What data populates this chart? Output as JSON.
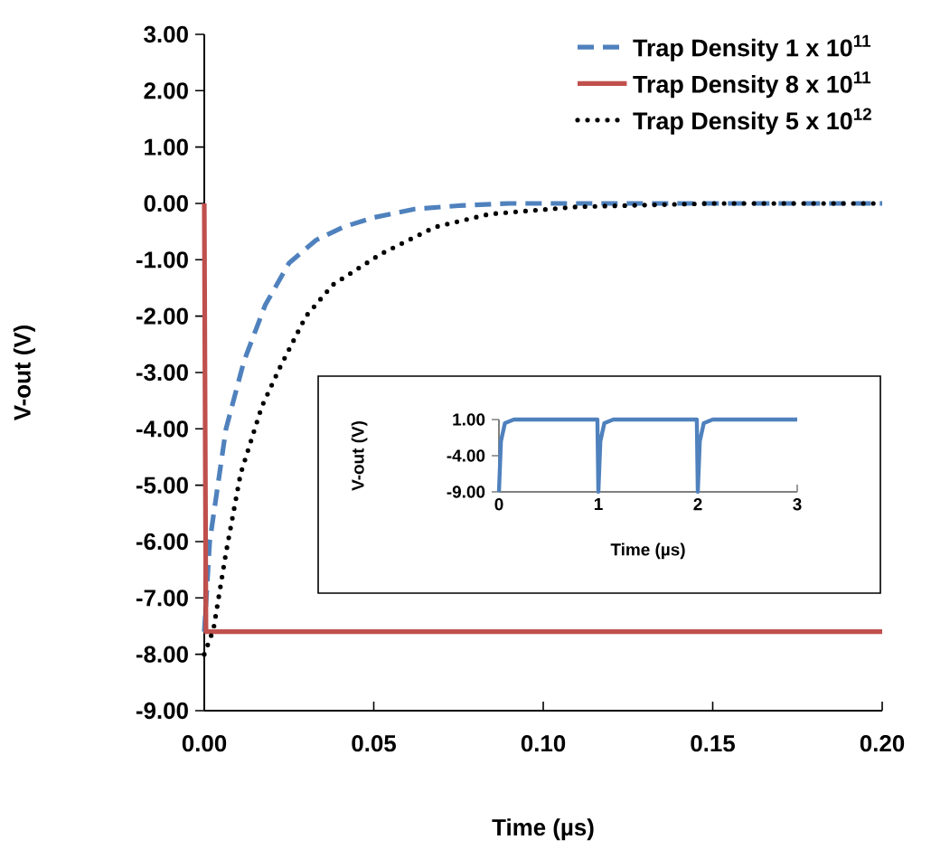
{
  "chart_data": [
    {
      "type": "line",
      "xlabel": "Time (µs)",
      "ylabel": "V-out (V)",
      "xlim": [
        0,
        0.2
      ],
      "ylim": [
        -9,
        3
      ],
      "xticks": [
        {
          "value": 0,
          "label": "0.00"
        },
        {
          "value": 0.05,
          "label": "0.05"
        },
        {
          "value": 0.1,
          "label": "0.10"
        },
        {
          "value": 0.15,
          "label": "0.15"
        },
        {
          "value": 0.2,
          "label": "0.20"
        }
      ],
      "yticks": [
        {
          "value": 3,
          "label": "3.00"
        },
        {
          "value": 2,
          "label": "2.00"
        },
        {
          "value": 1,
          "label": "1.00"
        },
        {
          "value": 0,
          "label": "0.00"
        },
        {
          "value": -1,
          "label": "-1.00"
        },
        {
          "value": -2,
          "label": "-2.00"
        },
        {
          "value": -3,
          "label": "-3.00"
        },
        {
          "value": -4,
          "label": "-4.00"
        },
        {
          "value": -5,
          "label": "-5.00"
        },
        {
          "value": -6,
          "label": "-6.00"
        },
        {
          "value": -7,
          "label": "-7.00"
        },
        {
          "value": -8,
          "label": "-8.00"
        },
        {
          "value": -9,
          "label": "-9.00"
        }
      ],
      "legend": "top right",
      "series": [
        {
          "name": "Trap Density 1 x 10$^{11}$",
          "color": "#4f81bd",
          "line_style": "dashed",
          "x": [
            0,
            0.0016,
            0.0064,
            0.0117,
            0.018,
            0.025,
            0.033,
            0.041,
            0.05,
            0.062,
            0.075,
            0.09,
            0.12,
            0.2
          ],
          "values": [
            -7.6,
            -6.0,
            -4.0,
            -2.8,
            -1.8,
            -1.06,
            -0.65,
            -0.42,
            -0.25,
            -0.1,
            -0.04,
            0,
            0,
            0
          ]
        },
        {
          "name": "Trap Density 8 x 10$^{11}$",
          "color": "#c0504d",
          "line_style": "solid",
          "x": [
            0,
            0.0005,
            0.2
          ],
          "values": [
            0,
            -7.6,
            -7.6
          ]
        },
        {
          "name": "Trap Density 5 x 10$^{12}$",
          "color": "#000000",
          "line_style": "dotted",
          "x": [
            0,
            0.0027,
            0.0064,
            0.0107,
            0.017,
            0.0224,
            0.03,
            0.038,
            0.052,
            0.068,
            0.084,
            0.11,
            0.15,
            0.2
          ],
          "values": [
            -8.0,
            -7.56,
            -6.2,
            -4.8,
            -3.6,
            -2.9,
            -2.0,
            -1.44,
            -0.9,
            -0.42,
            -0.19,
            -0.06,
            0,
            0
          ]
        }
      ]
    },
    {
      "type": "line",
      "xlabel": "Time  (µs)",
      "ylabel": "V-out (V)",
      "xlim": [
        0,
        3
      ],
      "ylim": [
        -9,
        1
      ],
      "xticks": [
        0,
        1,
        2,
        3
      ],
      "yticks": [
        {
          "value": 1,
          "label": "1.00"
        },
        {
          "value": -4,
          "label": "-4.00"
        },
        {
          "value": -9,
          "label": "-9.00"
        }
      ],
      "series": [
        {
          "color": "#4f81bd",
          "line_style": "solid",
          "x": [
            0,
            0.02,
            0.06,
            0.15,
            0.99,
            1.0,
            1.02,
            1.06,
            1.15,
            1.99,
            2.0,
            2.02,
            2.06,
            2.15,
            3
          ],
          "values": [
            -9,
            -2,
            0.5,
            1,
            1,
            -9,
            -2,
            0.5,
            1,
            1,
            -9,
            -2,
            0.5,
            1,
            1
          ]
        }
      ]
    }
  ]
}
